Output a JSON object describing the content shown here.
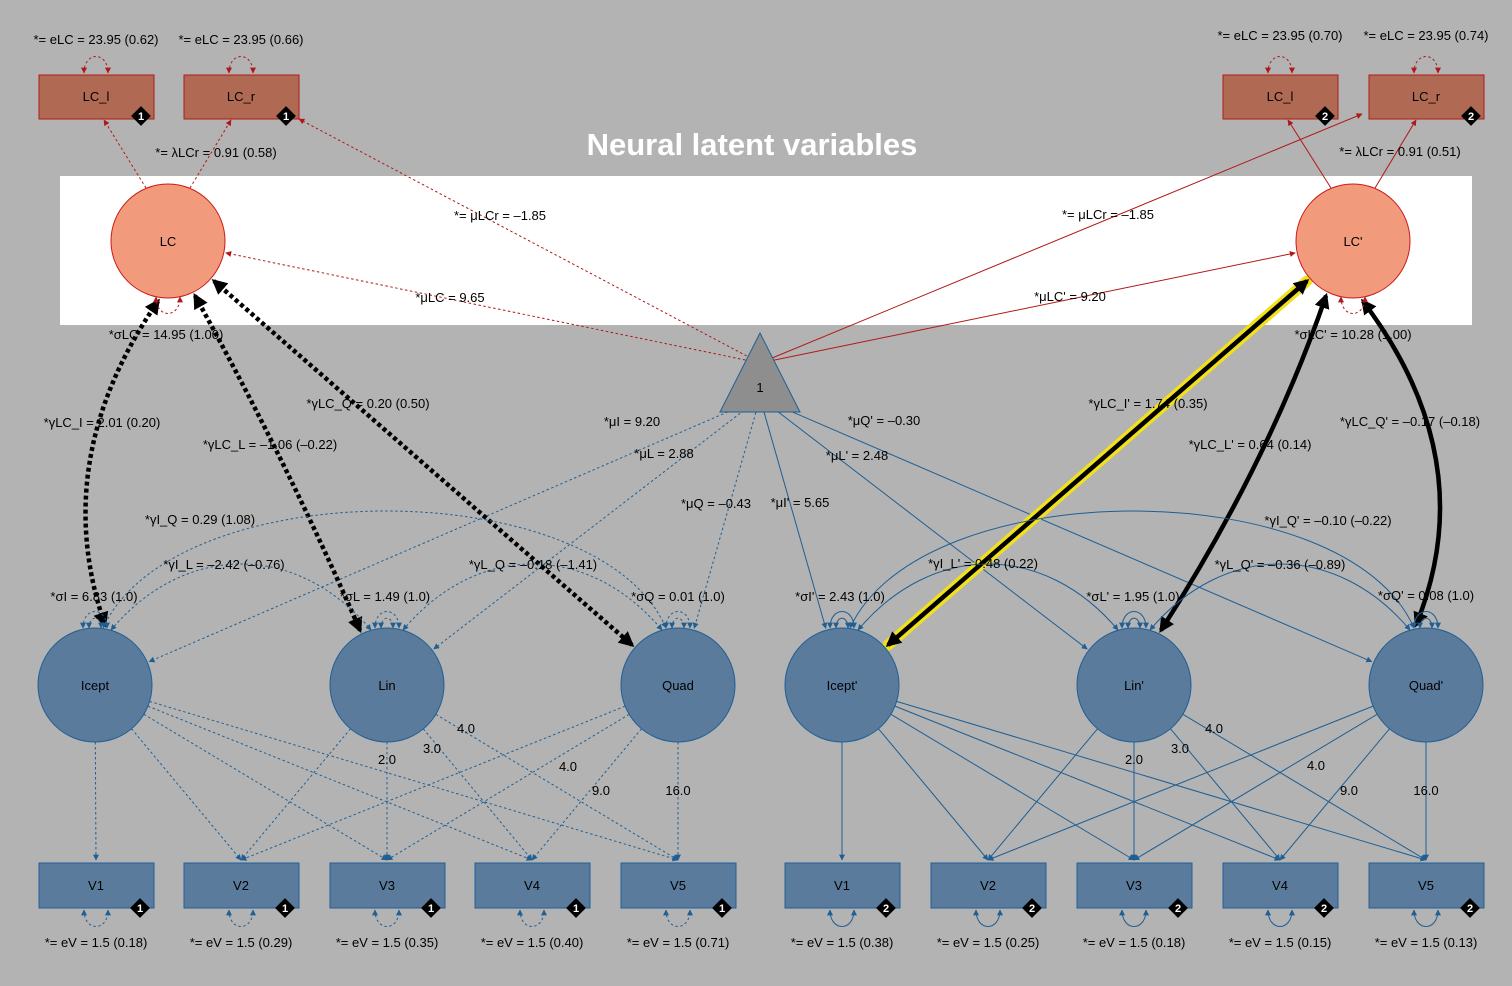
{
  "title": "Neural latent variables",
  "colors": {
    "background": "#b3b3b3",
    "neural_box": "#b06a54",
    "neural_box_stroke": "#b01818",
    "neural_circle": "#f29a7c",
    "neural_stroke": "#cc1a1a",
    "growth_fill": "#5b7b9c",
    "growth_stroke": "#1f5f94",
    "intercept_fill": "#8e8e8e",
    "highlight": "#f2e11a"
  },
  "intercept_node": "1",
  "groups": [
    {
      "id": "g1",
      "neural_latent": "LC",
      "neural_indicators": [
        {
          "label": "LC_l",
          "badge": "1",
          "var_label": "*= eLC = 23.95 (0.62)"
        },
        {
          "label": "LC_r",
          "badge": "1",
          "var_label": "*= eLC = 23.95 (0.66)"
        }
      ],
      "loading_label": "*= λLCr = 0.91 (0.58)",
      "mean_lc_label": "*μLC = 9.65",
      "mean_lcr_label": "*= μLCr = –1.85",
      "lc_var_label": "*σLC = 14.95 (1.00)",
      "growth": [
        {
          "label": "Icept",
          "var_label": "*σI = 6.83 (1.0)",
          "mean_label": "*μI = 9.20"
        },
        {
          "label": "Lin",
          "var_label": "*σL = 1.49 (1.0)",
          "mean_label": "*μL = 2.88"
        },
        {
          "label": "Quad",
          "var_label": "*σQ = 0.01 (1.0)",
          "mean_label": "*μQ = –0.43"
        }
      ],
      "gamma_labels": [
        "*γLC_I = 2.01 (0.20)",
        "*γLC_L = –1.06 (–0.22)",
        "*γLC_Q = 0.20 (0.50)"
      ],
      "cov_labels": [
        "*γI_Q = 0.29 (1.08)",
        "*γI_L = –2.42 (–0.76)",
        "*γL_Q = –0.18 (–1.41)"
      ],
      "observed": [
        {
          "label": "V1",
          "badge": "1",
          "var_label": "*= eV = 1.5 (0.18)"
        },
        {
          "label": "V2",
          "badge": "1",
          "var_label": "*= eV = 1.5 (0.29)"
        },
        {
          "label": "V3",
          "badge": "1",
          "var_label": "*= eV = 1.5 (0.35)"
        },
        {
          "label": "V4",
          "badge": "1",
          "var_label": "*= eV = 1.5 (0.40)"
        },
        {
          "label": "V5",
          "badge": "1",
          "var_label": "*= eV = 1.5 (0.71)"
        }
      ],
      "lin_loadings": [
        "2.0",
        "3.0",
        "4.0"
      ],
      "quad_loadings": [
        "4.0",
        "9.0",
        "16.0"
      ]
    },
    {
      "id": "g2",
      "neural_latent": "LC'",
      "neural_indicators": [
        {
          "label": "LC_l",
          "badge": "2",
          "var_label": "*= eLC = 23.95 (0.70)"
        },
        {
          "label": "LC_r",
          "badge": "2",
          "var_label": "*= eLC = 23.95 (0.74)"
        }
      ],
      "loading_label": "*= λLCr = 0.91 (0.51)",
      "mean_lc_label": "*μLC' = 9.20",
      "mean_lcr_label": "*= μLCr = –1.85",
      "lc_var_label": "*σLC' = 10.28 (1.00)",
      "growth": [
        {
          "label": "Icept'",
          "var_label": "*σI' = 2.43 (1.0)",
          "mean_label": "*μI' = 5.65"
        },
        {
          "label": "Lin'",
          "var_label": "*σL' = 1.95 (1.0)",
          "mean_label": "*μL' = 2.48"
        },
        {
          "label": "Quad'",
          "var_label": "*σQ' = 0.08 (1.0)",
          "mean_label": "*μQ' = –0.30"
        }
      ],
      "gamma_labels": [
        "*γLC_I' = 1.74 (0.35)",
        "*γLC_L' = 0.64 (0.14)",
        "*γLC_Q' = –0.17 (–0.18)"
      ],
      "cov_labels": [
        "*γI_Q' = –0.10 (–0.22)",
        "*γI_L' = 0.48 (0.22)",
        "*γL_Q' = –0.36 (–0.89)"
      ],
      "observed": [
        {
          "label": "V1",
          "badge": "2",
          "var_label": "*= eV = 1.5 (0.38)"
        },
        {
          "label": "V2",
          "badge": "2",
          "var_label": "*= eV = 1.5 (0.25)"
        },
        {
          "label": "V3",
          "badge": "2",
          "var_label": "*= eV = 1.5 (0.18)"
        },
        {
          "label": "V4",
          "badge": "2",
          "var_label": "*= eV = 1.5 (0.15)"
        },
        {
          "label": "V5",
          "badge": "2",
          "var_label": "*= eV = 1.5 (0.13)"
        }
      ],
      "lin_loadings": [
        "2.0",
        "3.0",
        "4.0"
      ],
      "quad_loadings": [
        "4.0",
        "9.0",
        "16.0"
      ]
    }
  ]
}
